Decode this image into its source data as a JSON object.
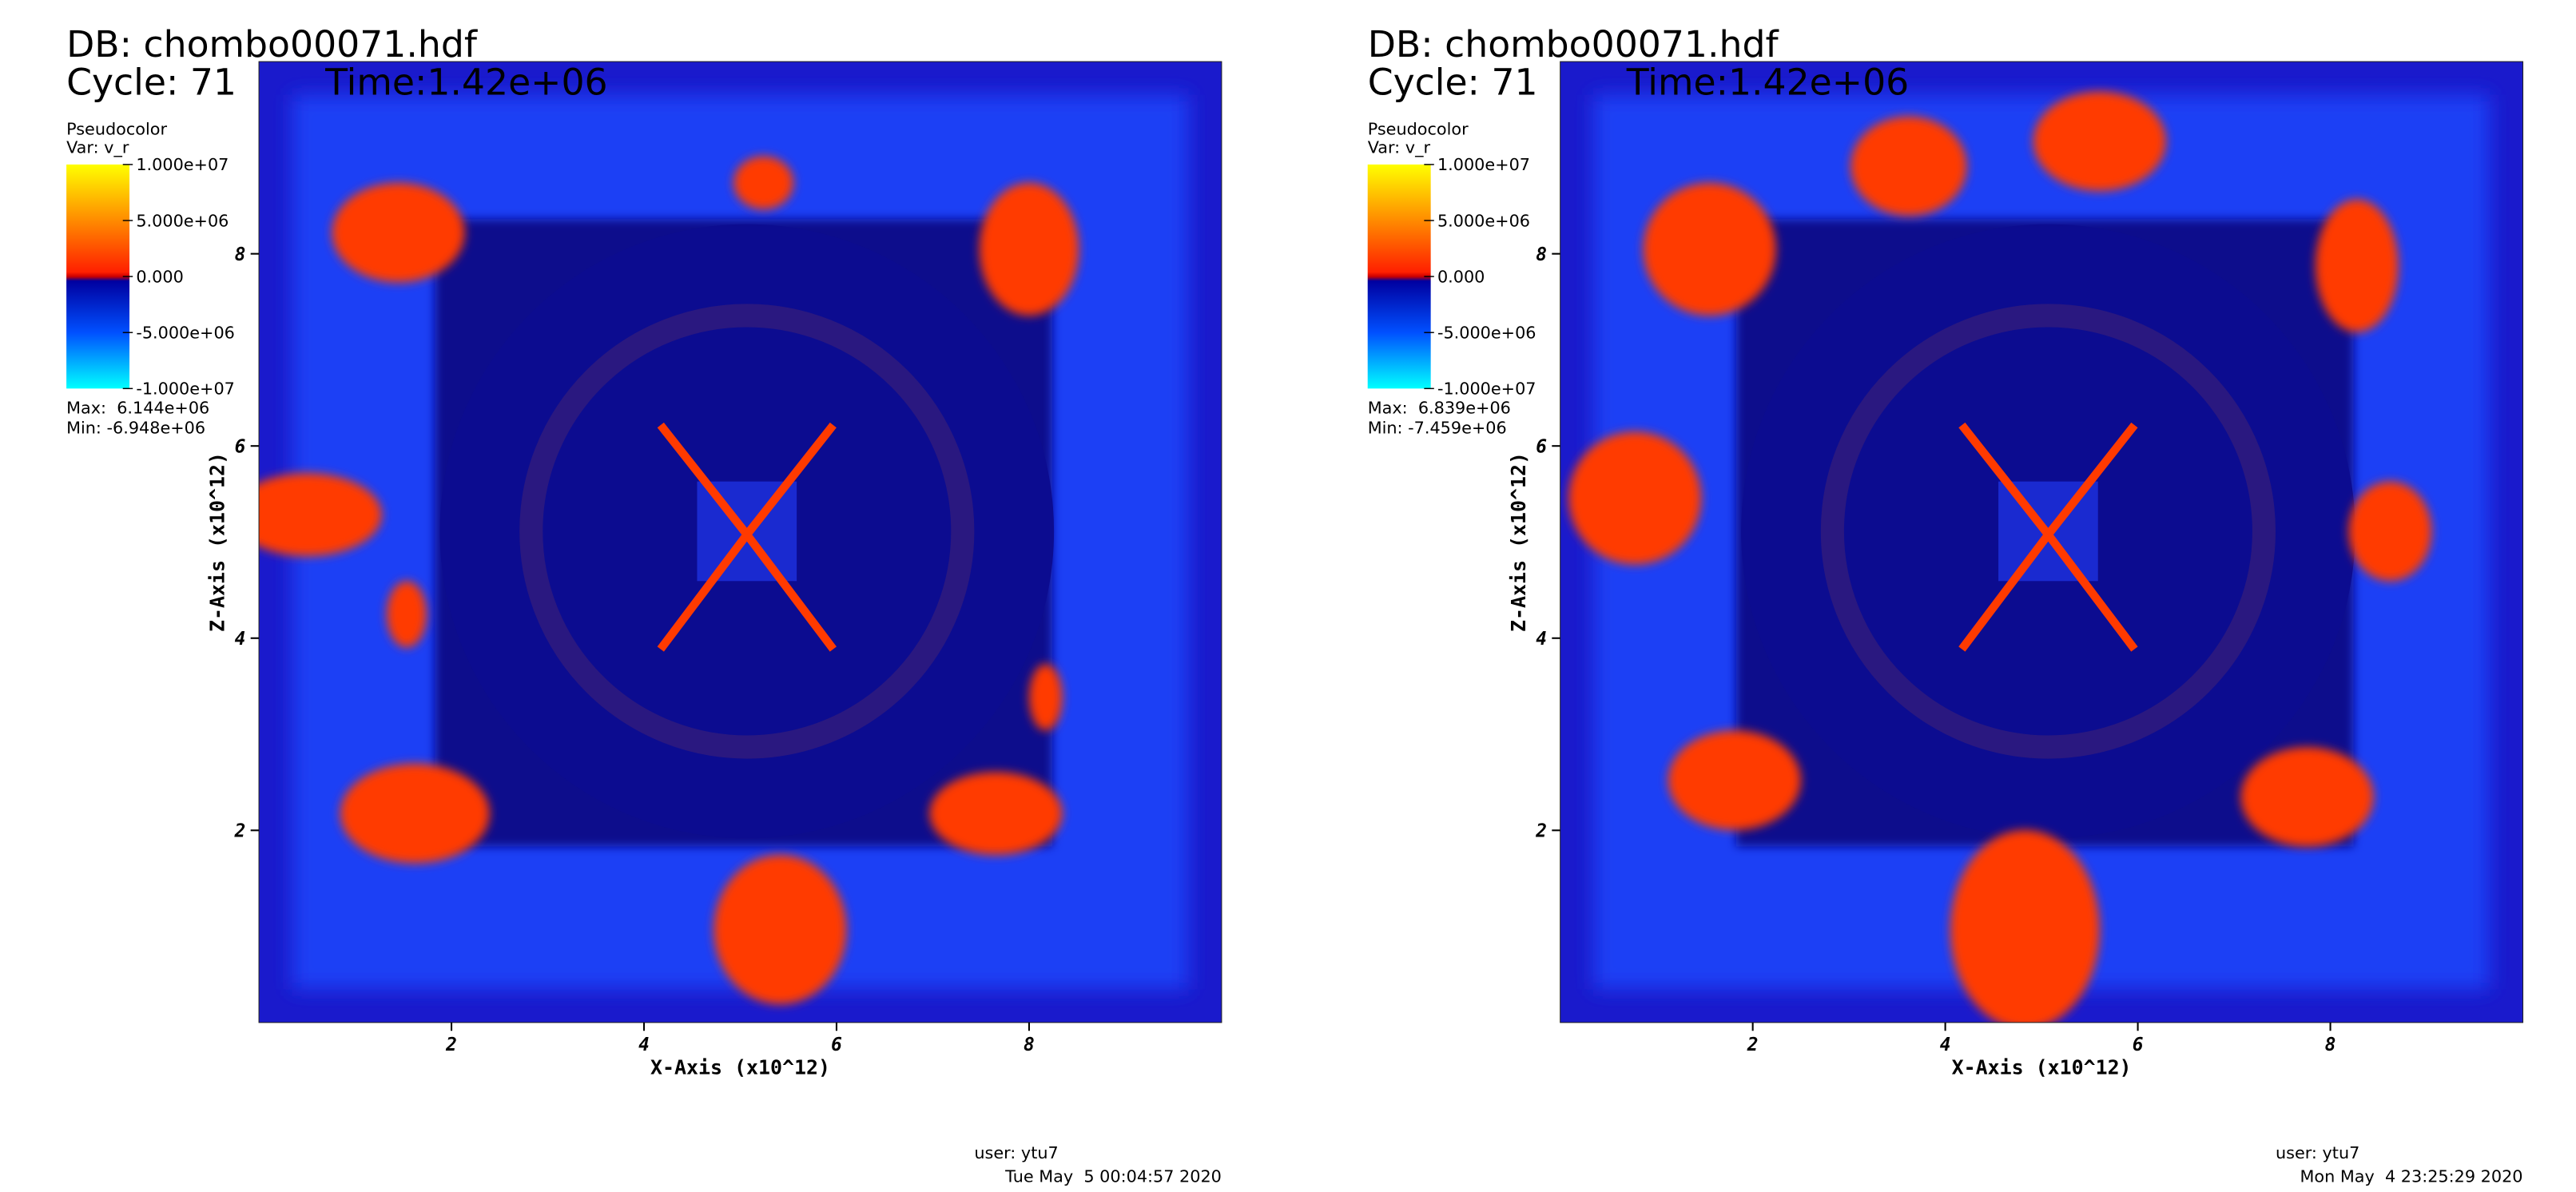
{
  "panels": [
    {
      "db": "DB: chombo00071.hdf",
      "cycle": "Cycle: 71",
      "time": "Time:1.42e+06",
      "legend": {
        "title": "Pseudocolor",
        "var": "Var: v_r",
        "labels": [
          "1.000e+07",
          "5.000e+06",
          "0.000",
          "-5.000e+06",
          "-1.000e+07"
        ],
        "max": "Max:  6.144e+06",
        "min": "Min: -6.948e+06"
      },
      "x_label": "X-Axis (x10^12)",
      "y_label": "Z-Axis (x10^12)",
      "xlim": [
        0,
        10
      ],
      "ylim": [
        0,
        10
      ],
      "xticks": [
        2,
        4,
        6,
        8
      ],
      "yticks": [
        2,
        4,
        6,
        8
      ],
      "user": "user: ytu7",
      "date": "Tue May  5 00:04:57 2020"
    },
    {
      "db": "DB: chombo00071.hdf",
      "cycle": "Cycle: 71",
      "time": "Time:1.42e+06",
      "legend": {
        "title": "Pseudocolor",
        "var": "Var: v_r",
        "labels": [
          "1.000e+07",
          "5.000e+06",
          "0.000",
          "-5.000e+06",
          "-1.000e+07"
        ],
        "max": "Max:  6.839e+06",
        "min": "Min: -7.459e+06"
      },
      "x_label": "X-Axis (x10^12)",
      "y_label": "Z-Axis (x10^12)",
      "xlim": [
        0,
        10
      ],
      "ylim": [
        0,
        10
      ],
      "xticks": [
        2,
        4,
        6,
        8
      ],
      "yticks": [
        2,
        4,
        6,
        8
      ],
      "user": "user: ytu7",
      "date": "Mon May  4 23:25:29 2020"
    }
  ]
}
